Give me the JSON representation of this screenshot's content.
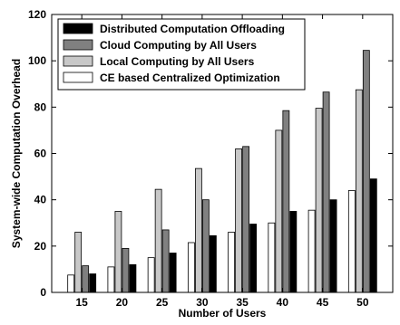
{
  "chart_data": {
    "type": "bar",
    "title": "",
    "xlabel": "Number of Users",
    "ylabel": "System-wide Computation Overhead",
    "ylim": [
      0,
      120
    ],
    "yticks": [
      0,
      20,
      40,
      60,
      80,
      100,
      120
    ],
    "categories": [
      "15",
      "20",
      "25",
      "30",
      "35",
      "40",
      "45",
      "50"
    ],
    "grid": false,
    "legend_position": "top-left",
    "series": [
      {
        "name": "CE based Centralized Optimization",
        "color": "#ffffff",
        "values": [
          7.5,
          11,
          15,
          21.5,
          26,
          30,
          35.5,
          44
        ]
      },
      {
        "name": "Local Computing by All Users",
        "color": "#c8c8c8",
        "values": [
          26,
          35,
          44.5,
          53.5,
          62,
          70,
          79.5,
          87.5
        ]
      },
      {
        "name": "Cloud Computing by All Users",
        "color": "#808080",
        "values": [
          11.5,
          19,
          27,
          40,
          63,
          78.5,
          86.5,
          104.5
        ]
      },
      {
        "name": "Distributed Computation Offloading",
        "color": "#000000",
        "values": [
          8,
          12,
          17,
          24.5,
          29.5,
          35,
          40,
          49
        ]
      }
    ],
    "legend_order": [
      "Distributed Computation Offloading",
      "Cloud Computing by All Users",
      "Local Computing by All Users",
      "CE based Centralized Optimization"
    ]
  }
}
